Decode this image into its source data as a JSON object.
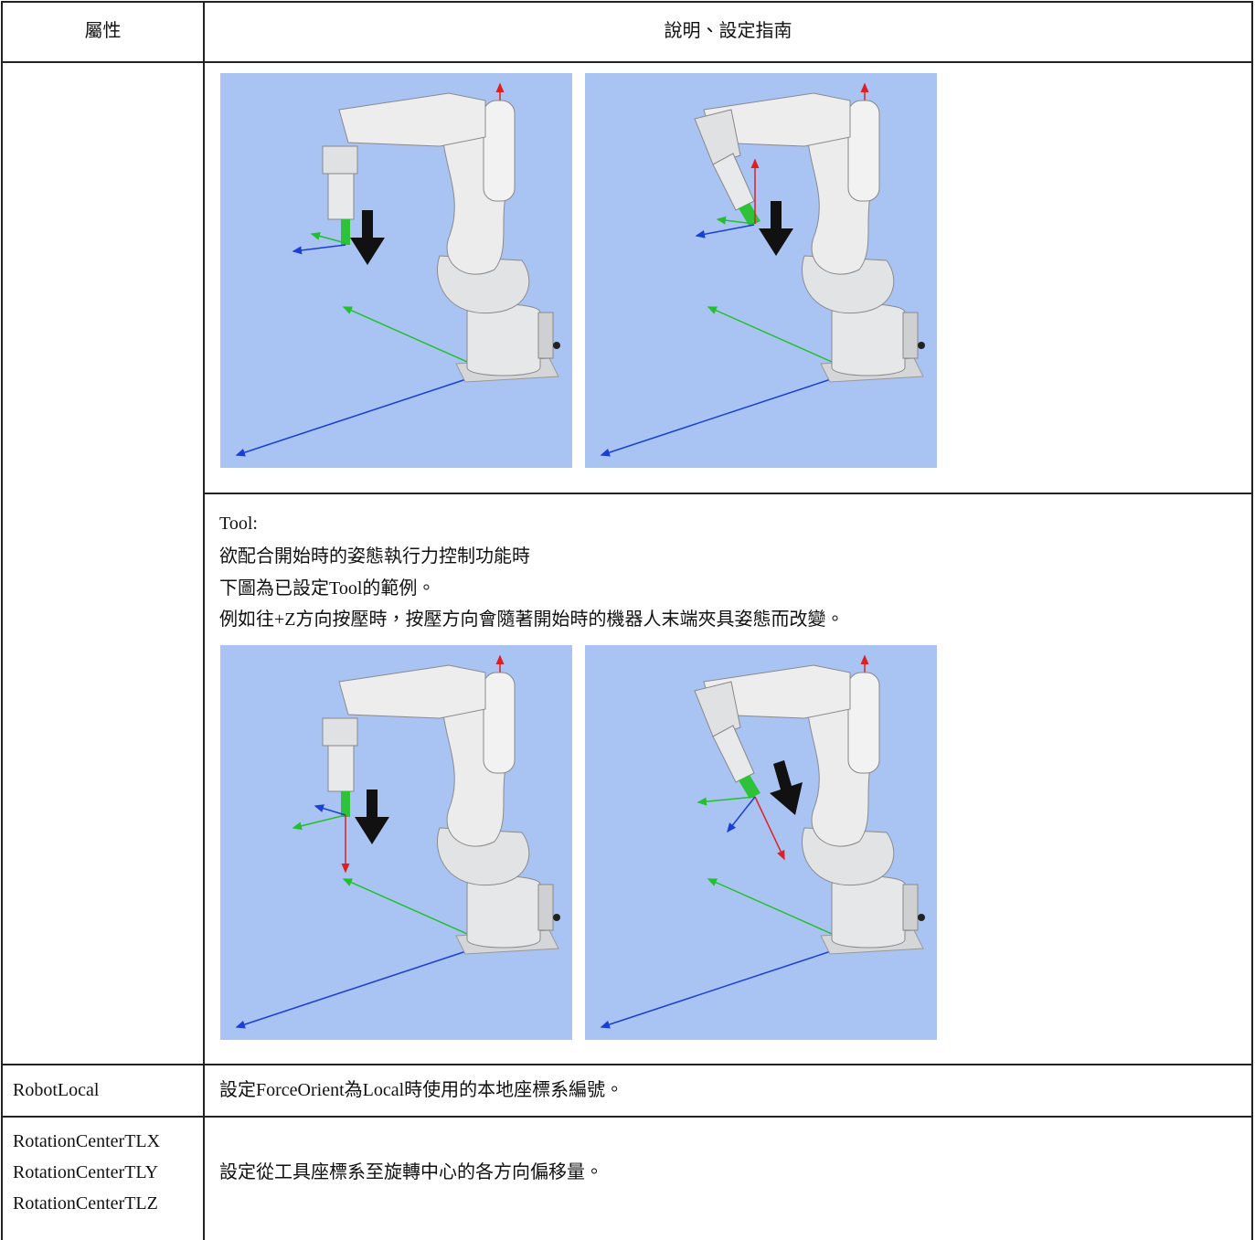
{
  "header": {
    "attribute": "屬性",
    "description": "說明、設定指南"
  },
  "tool_description": {
    "lines": [
      "Tool:",
      "欲配合開始時的姿態執行力控制功能時",
      "下圖為已設定Tool的範例。",
      "例如往+Z方向按壓時，按壓方向會隨著開始時的機器人末端夾具姿態而改變。"
    ]
  },
  "rows": [
    {
      "attribute": [
        "RobotLocal"
      ],
      "description": "設定ForceOrient為Local時使用的本地座標系編號。"
    },
    {
      "attribute": [
        "RotationCenterTLX",
        "RotationCenterTLY",
        "RotationCenterTLZ"
      ],
      "description": "設定從工具座標系至旋轉中心的各方向偏移量。"
    }
  ]
}
